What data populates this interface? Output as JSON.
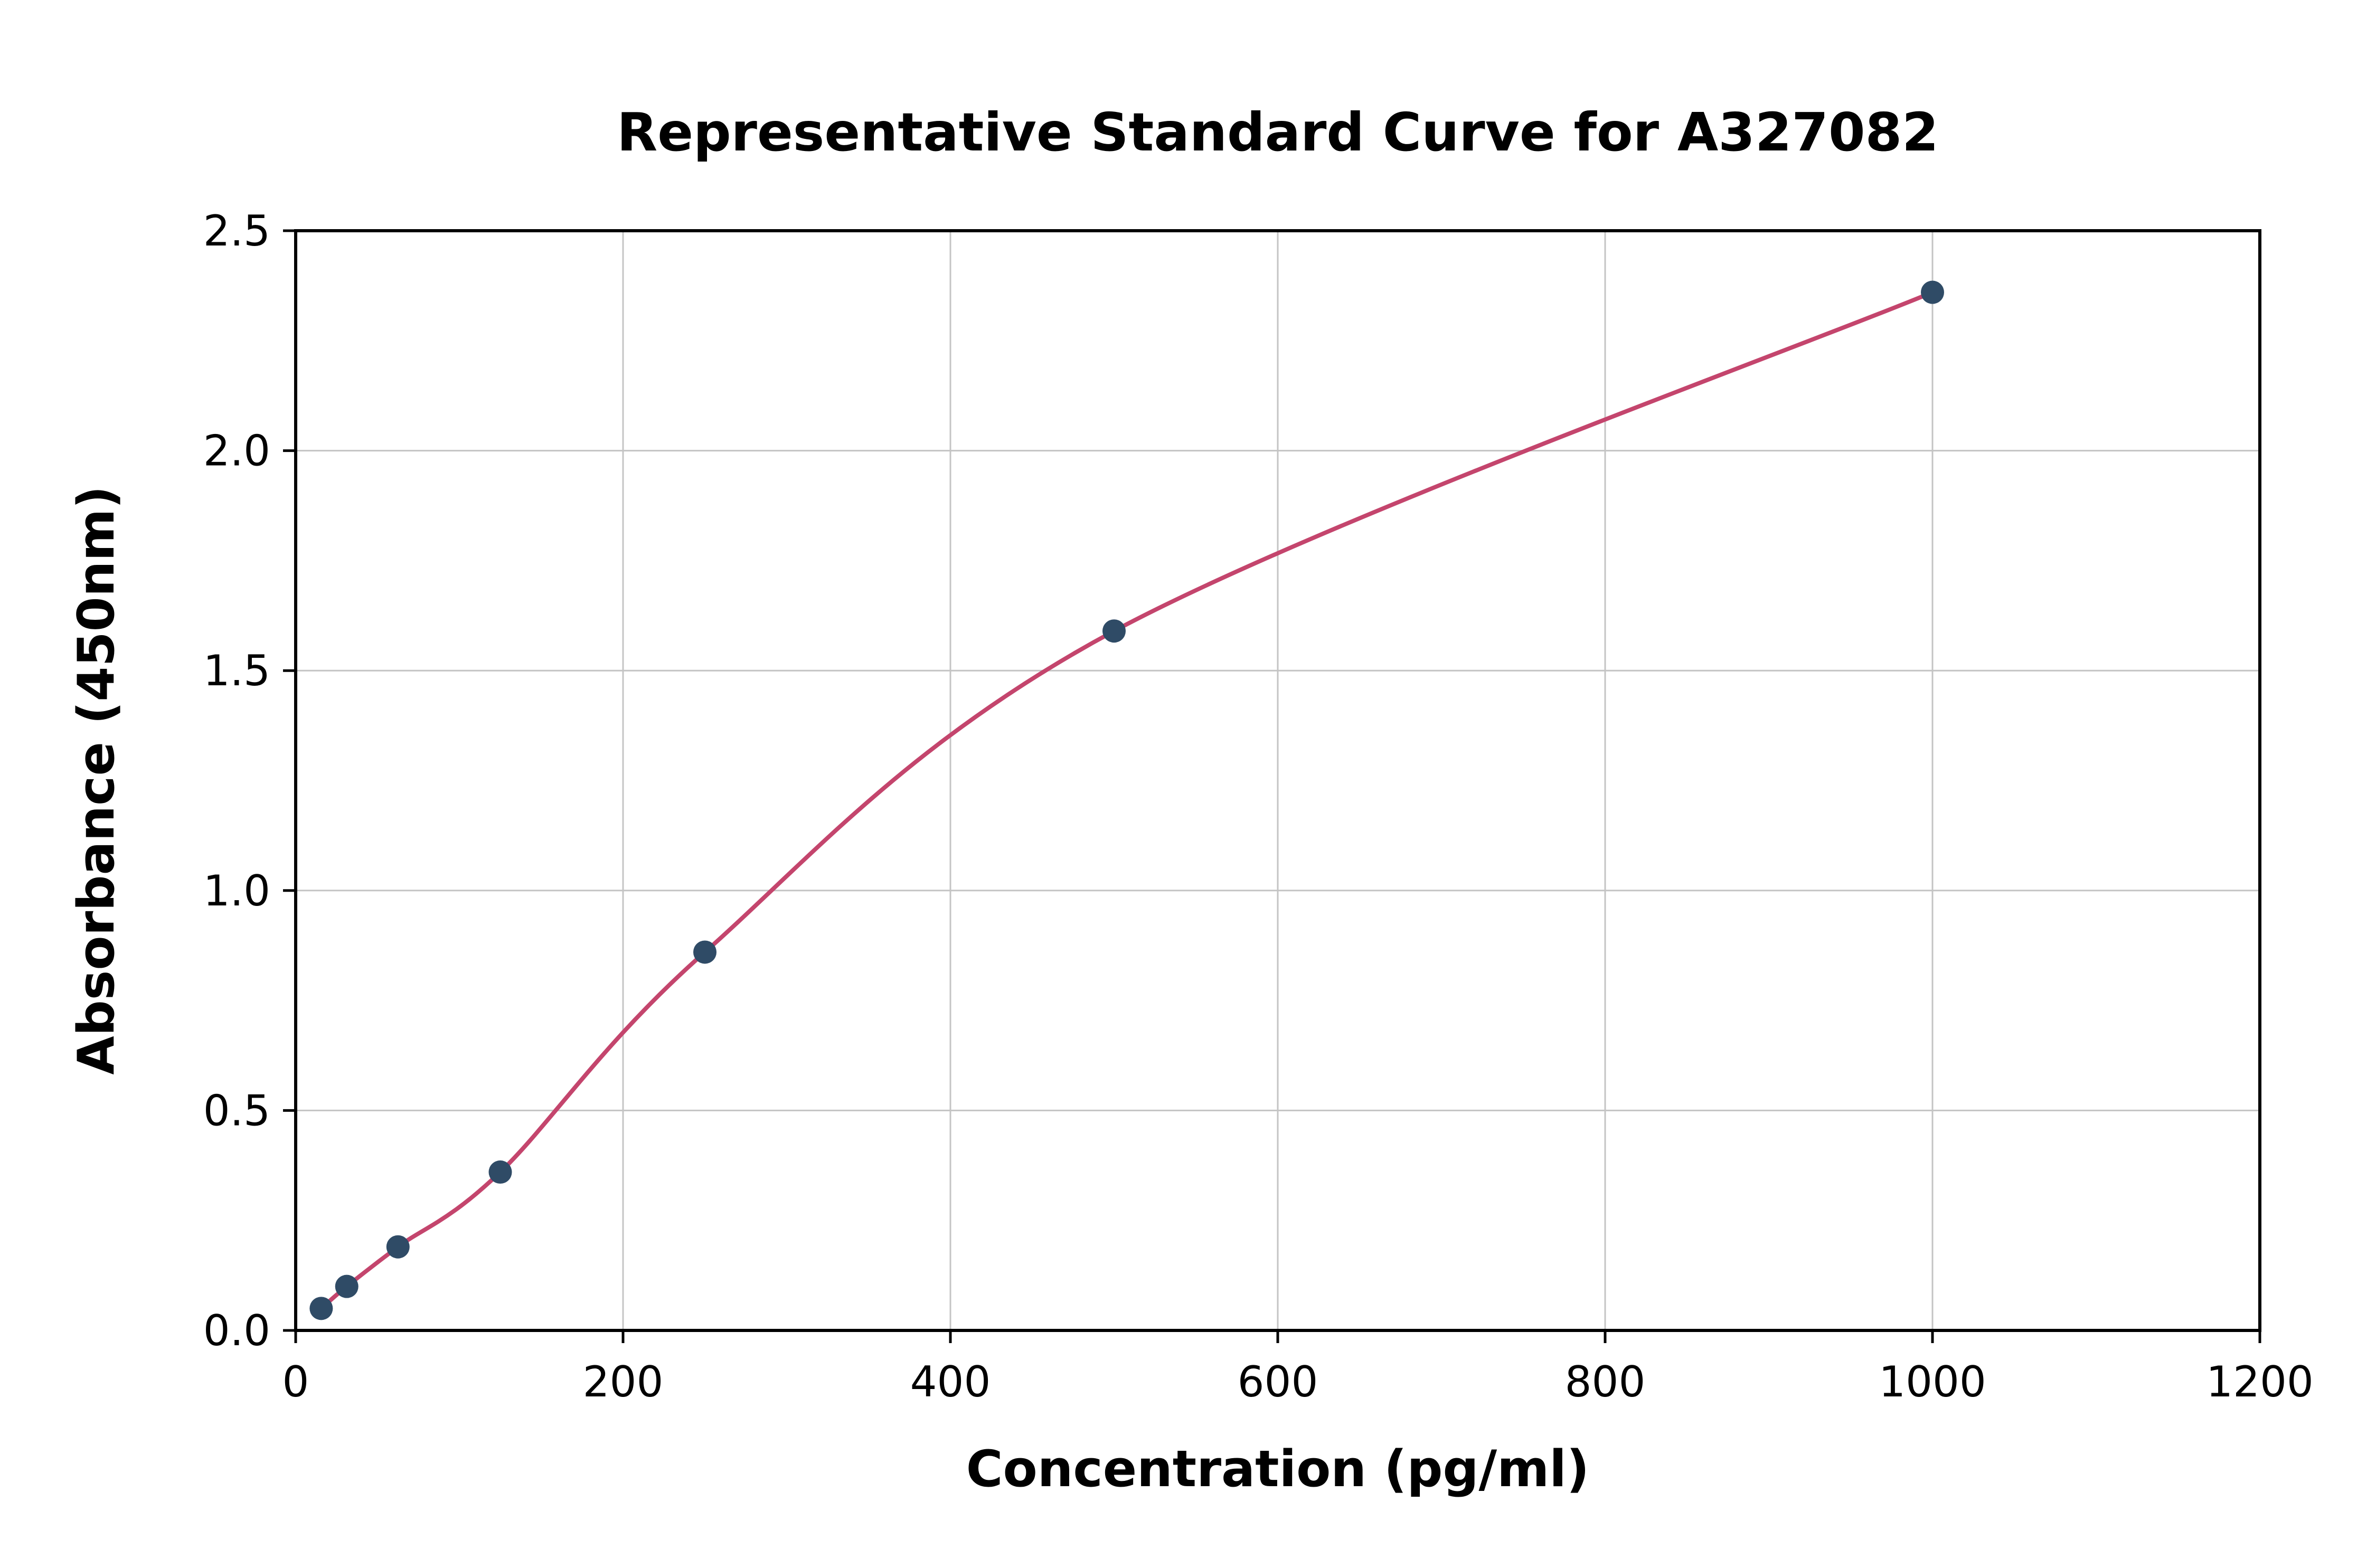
{
  "chart_data": {
    "type": "scatter",
    "title": "Representative Standard Curve for A327082",
    "xlabel": "Concentration (pg/ml)",
    "ylabel": "Absorbance (450nm)",
    "xlim": [
      0,
      1200
    ],
    "ylim": [
      0,
      2.5
    ],
    "xticks": [
      0,
      200,
      400,
      600,
      800,
      1000,
      1200
    ],
    "xtick_labels": [
      "0",
      "200",
      "400",
      "600",
      "800",
      "1000",
      "1200"
    ],
    "yticks": [
      0,
      0.5,
      1.0,
      1.5,
      2.0,
      2.5
    ],
    "ytick_labels": [
      "0.0",
      "0.5",
      "1.0",
      "1.5",
      "2.0",
      "2.5"
    ],
    "grid": true,
    "legend": "none",
    "colors": {
      "point_color": "#2f4b66",
      "curve_color": "#c4456d",
      "grid_color": "#c4c4c4",
      "frame_color": "#000000",
      "background": "#ffffff"
    },
    "series": [
      {
        "name": "fit-curve",
        "type": "line",
        "color": "#c4456d",
        "x": [
          15.6,
          31.2,
          62.5,
          125,
          250,
          500,
          1000
        ],
        "y": [
          0.05,
          0.1,
          0.19,
          0.36,
          0.86,
          1.59,
          2.36
        ]
      },
      {
        "name": "standard-points",
        "type": "scatter",
        "color": "#2f4b66",
        "x": [
          15.6,
          31.2,
          62.5,
          125,
          250,
          500,
          1000
        ],
        "y": [
          0.05,
          0.1,
          0.19,
          0.36,
          0.86,
          1.59,
          2.36
        ]
      }
    ]
  }
}
